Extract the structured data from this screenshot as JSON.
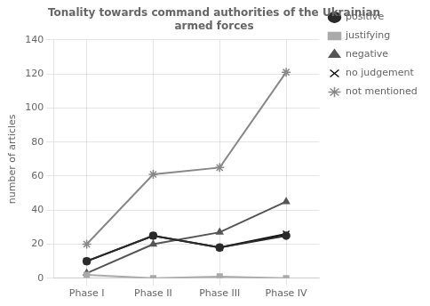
{
  "chart_data": {
    "type": "line",
    "title": "Tonality towards command authorities of the Ukrainian\narmed forces",
    "y_label": "number of articles",
    "categories": [
      "Phase I",
      "Phase II",
      "Phase III",
      "Phase IV"
    ],
    "series": [
      {
        "name": "positive",
        "color": "#2a2a2a",
        "marker": "circle",
        "values": [
          10,
          25,
          18,
          25
        ]
      },
      {
        "name": "justifying",
        "color": "#aaaaaa",
        "marker": "square",
        "values": [
          2,
          0,
          1,
          0
        ]
      },
      {
        "name": "negative",
        "color": "#555555",
        "marker": "triangle",
        "values": [
          3,
          20,
          27,
          45
        ]
      },
      {
        "name": "no judgement",
        "color": "#111111",
        "marker": "x",
        "values": [
          10,
          25,
          18,
          26
        ]
      },
      {
        "name": "not mentioned",
        "color": "#888888",
        "marker": "star",
        "values": [
          20,
          61,
          65,
          121
        ]
      }
    ],
    "ylim": [
      0,
      140
    ],
    "yticks": [
      0,
      20,
      40,
      60,
      80,
      100,
      120,
      140
    ],
    "grid": true,
    "legend": "right"
  }
}
